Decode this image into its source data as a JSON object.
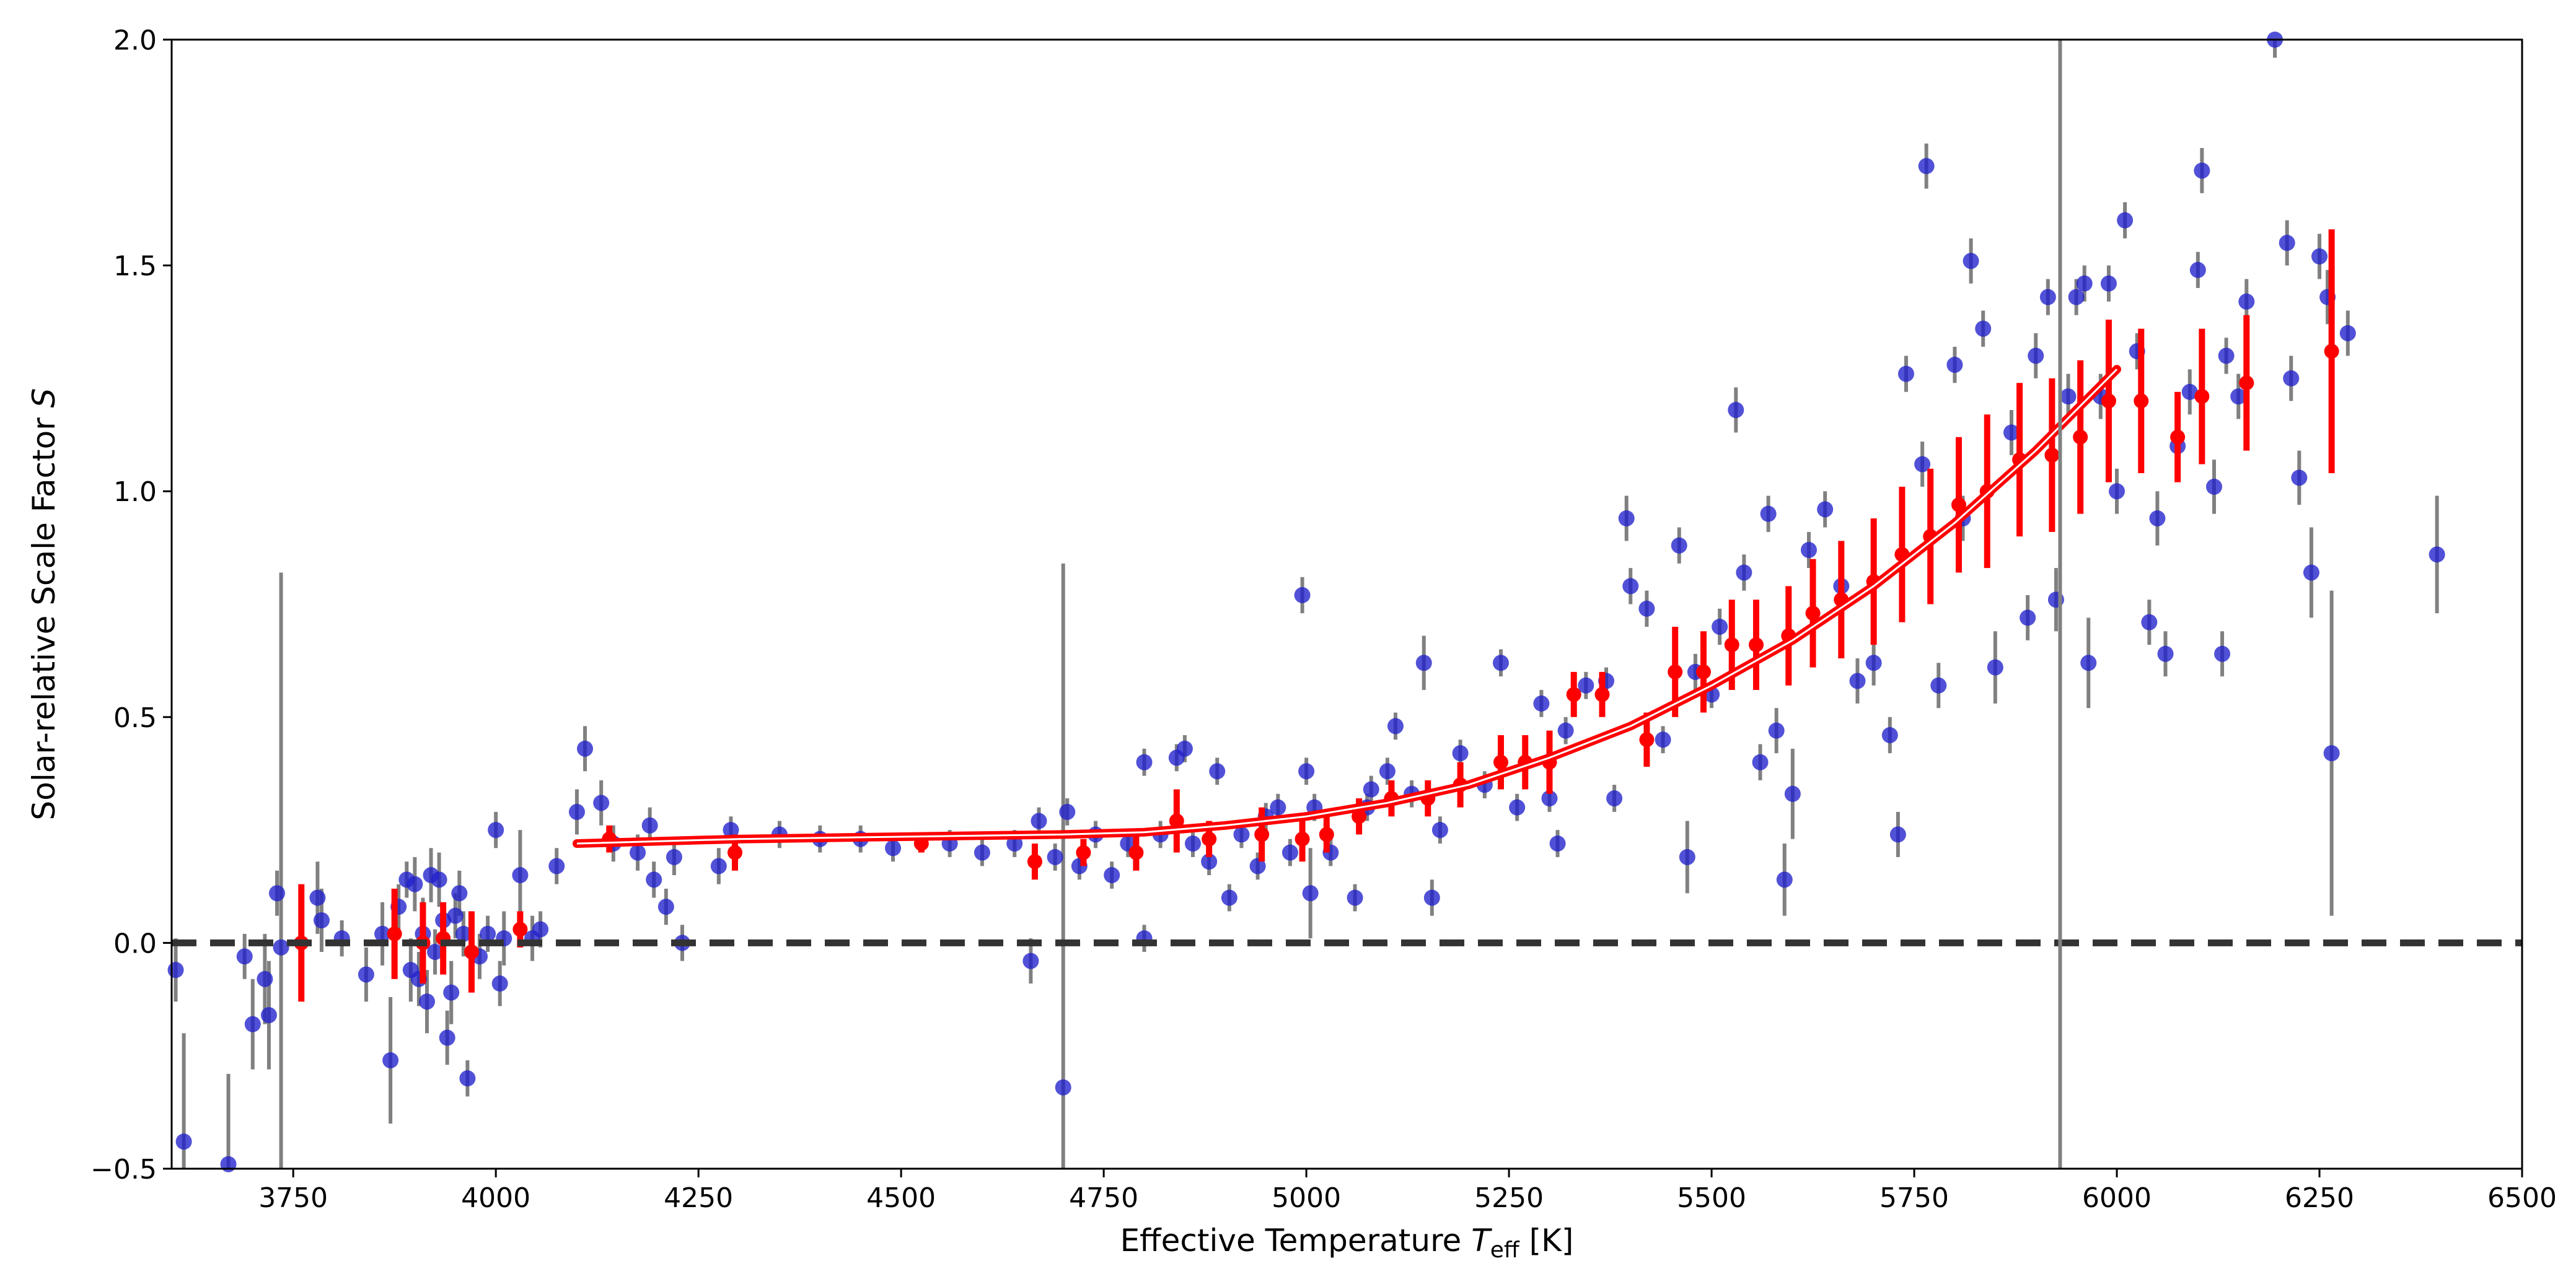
{
  "chart_data": {
    "type": "scatter",
    "title": "",
    "xlabel": {
      "prefix": "Effective Temperature ",
      "symbol": "T",
      "subscript": "eff",
      "suffix": " [K]"
    },
    "ylabel": {
      "prefix": "Solar-relative Scale Factor ",
      "symbol": "S"
    },
    "xlim": [
      3600,
      6500
    ],
    "ylim": [
      -0.5,
      2.0
    ],
    "xticks": [
      3750,
      4000,
      4250,
      4500,
      4750,
      5000,
      5250,
      5500,
      5750,
      6000,
      6250,
      6500
    ],
    "yticks": [
      -0.5,
      0.0,
      0.5,
      1.0,
      1.5,
      2.0
    ],
    "grid": false,
    "reference_line": {
      "y": 0.0,
      "style": "dashed",
      "color": "#333333"
    },
    "vertical_line": {
      "x": 5930,
      "color": "#808080"
    },
    "colors": {
      "individual": "#2020cc",
      "errorbar": "#808080",
      "binned": "#ff0000",
      "fit": "#ff0000"
    },
    "series": [
      {
        "marker": "circle",
        "points": [
          [
            3605,
            -0.06,
            0.07
          ],
          [
            3615,
            -0.44,
            0.24
          ],
          [
            3670,
            -0.49,
            0.2
          ],
          [
            3690,
            -0.03,
            0.05
          ],
          [
            3700,
            -0.18,
            0.1
          ],
          [
            3715,
            -0.08,
            0.1
          ],
          [
            3720,
            -0.16,
            0.12
          ],
          [
            3730,
            0.11,
            0.05
          ],
          [
            3735,
            -0.01,
            0.83
          ],
          [
            3780,
            0.1,
            0.08
          ],
          [
            3785,
            0.05,
            0.07
          ],
          [
            3810,
            0.01,
            0.04
          ],
          [
            3840,
            -0.07,
            0.06
          ],
          [
            3860,
            0.02,
            0.07
          ],
          [
            3870,
            -0.26,
            0.14
          ],
          [
            3880,
            0.08,
            0.05
          ],
          [
            3890,
            0.14,
            0.04
          ],
          [
            3895,
            -0.06,
            0.07
          ],
          [
            3900,
            0.13,
            0.06
          ],
          [
            3905,
            -0.08,
            0.06
          ],
          [
            3910,
            0.02,
            0.08
          ],
          [
            3915,
            -0.13,
            0.07
          ],
          [
            3920,
            0.15,
            0.06
          ],
          [
            3925,
            -0.02,
            0.05
          ],
          [
            3930,
            0.14,
            0.06
          ],
          [
            3935,
            0.05,
            0.04
          ],
          [
            3940,
            -0.21,
            0.06
          ],
          [
            3945,
            -0.11,
            0.07
          ],
          [
            3950,
            0.06,
            0.05
          ],
          [
            3955,
            0.11,
            0.05
          ],
          [
            3960,
            0.02,
            0.05
          ],
          [
            3965,
            -0.3,
            0.04
          ],
          [
            3980,
            -0.03,
            0.05
          ],
          [
            3990,
            0.02,
            0.04
          ],
          [
            4000,
            0.25,
            0.04
          ],
          [
            4005,
            -0.09,
            0.05
          ],
          [
            4010,
            0.01,
            0.06
          ],
          [
            4030,
            0.15,
            0.1
          ],
          [
            4045,
            0.01,
            0.05
          ],
          [
            4055,
            0.03,
            0.04
          ],
          [
            4075,
            0.17,
            0.04
          ],
          [
            4100,
            0.29,
            0.05
          ],
          [
            4110,
            0.43,
            0.05
          ],
          [
            4130,
            0.31,
            0.05
          ],
          [
            4145,
            0.22,
            0.04
          ],
          [
            4175,
            0.2,
            0.04
          ],
          [
            4190,
            0.26,
            0.04
          ],
          [
            4195,
            0.14,
            0.04
          ],
          [
            4210,
            0.08,
            0.04
          ],
          [
            4220,
            0.19,
            0.04
          ],
          [
            4230,
            0.0,
            0.04
          ],
          [
            4275,
            0.17,
            0.04
          ],
          [
            4290,
            0.25,
            0.03
          ],
          [
            4350,
            0.24,
            0.03
          ],
          [
            4400,
            0.23,
            0.03
          ],
          [
            4450,
            0.23,
            0.03
          ],
          [
            4490,
            0.21,
            0.03
          ],
          [
            4560,
            0.22,
            0.03
          ],
          [
            4600,
            0.2,
            0.03
          ],
          [
            4640,
            0.22,
            0.03
          ],
          [
            4660,
            -0.04,
            0.05
          ],
          [
            4670,
            0.27,
            0.03
          ],
          [
            4690,
            0.19,
            0.03
          ],
          [
            4700,
            -0.32,
            1.16
          ],
          [
            4705,
            0.29,
            0.03
          ],
          [
            4720,
            0.17,
            0.03
          ],
          [
            4740,
            0.24,
            0.03
          ],
          [
            4760,
            0.15,
            0.03
          ],
          [
            4780,
            0.22,
            0.03
          ],
          [
            4800,
            0.4,
            0.03
          ],
          [
            4800,
            0.01,
            0.03
          ],
          [
            4820,
            0.24,
            0.03
          ],
          [
            4840,
            0.41,
            0.03
          ],
          [
            4850,
            0.43,
            0.03
          ],
          [
            4860,
            0.22,
            0.03
          ],
          [
            4880,
            0.18,
            0.03
          ],
          [
            4890,
            0.38,
            0.03
          ],
          [
            4905,
            0.1,
            0.03
          ],
          [
            4920,
            0.24,
            0.03
          ],
          [
            4940,
            0.17,
            0.03
          ],
          [
            4950,
            0.28,
            0.03
          ],
          [
            4965,
            0.3,
            0.03
          ],
          [
            4980,
            0.2,
            0.03
          ],
          [
            4995,
            0.77,
            0.04
          ],
          [
            5000,
            0.38,
            0.03
          ],
          [
            5005,
            0.11,
            0.1
          ],
          [
            5010,
            0.3,
            0.03
          ],
          [
            5030,
            0.2,
            0.03
          ],
          [
            5060,
            0.1,
            0.03
          ],
          [
            5075,
            0.3,
            0.03
          ],
          [
            5080,
            0.34,
            0.03
          ],
          [
            5100,
            0.38,
            0.03
          ],
          [
            5110,
            0.48,
            0.03
          ],
          [
            5130,
            0.33,
            0.03
          ],
          [
            5145,
            0.62,
            0.06
          ],
          [
            5155,
            0.1,
            0.04
          ],
          [
            5165,
            0.25,
            0.03
          ],
          [
            5190,
            0.42,
            0.03
          ],
          [
            5220,
            0.35,
            0.03
          ],
          [
            5240,
            0.62,
            0.03
          ],
          [
            5260,
            0.3,
            0.03
          ],
          [
            5290,
            0.53,
            0.03
          ],
          [
            5300,
            0.32,
            0.03
          ],
          [
            5310,
            0.22,
            0.03
          ],
          [
            5320,
            0.47,
            0.03
          ],
          [
            5345,
            0.57,
            0.03
          ],
          [
            5370,
            0.58,
            0.03
          ],
          [
            5380,
            0.32,
            0.03
          ],
          [
            5395,
            0.94,
            0.05
          ],
          [
            5400,
            0.79,
            0.04
          ],
          [
            5420,
            0.74,
            0.04
          ],
          [
            5440,
            0.45,
            0.03
          ],
          [
            5460,
            0.88,
            0.04
          ],
          [
            5470,
            0.19,
            0.08
          ],
          [
            5480,
            0.6,
            0.04
          ],
          [
            5500,
            0.55,
            0.03
          ],
          [
            5510,
            0.7,
            0.04
          ],
          [
            5530,
            1.18,
            0.05
          ],
          [
            5540,
            0.82,
            0.04
          ],
          [
            5560,
            0.4,
            0.04
          ],
          [
            5570,
            0.95,
            0.04
          ],
          [
            5580,
            0.47,
            0.05
          ],
          [
            5590,
            0.14,
            0.08
          ],
          [
            5600,
            0.33,
            0.1
          ],
          [
            5620,
            0.87,
            0.04
          ],
          [
            5640,
            0.96,
            0.04
          ],
          [
            5660,
            0.79,
            0.04
          ],
          [
            5680,
            0.58,
            0.05
          ],
          [
            5700,
            0.62,
            0.05
          ],
          [
            5720,
            0.46,
            0.04
          ],
          [
            5730,
            0.24,
            0.05
          ],
          [
            5740,
            1.26,
            0.04
          ],
          [
            5760,
            1.06,
            0.05
          ],
          [
            5765,
            1.72,
            0.05
          ],
          [
            5780,
            0.57,
            0.05
          ],
          [
            5800,
            1.28,
            0.04
          ],
          [
            5810,
            0.94,
            0.05
          ],
          [
            5820,
            1.51,
            0.05
          ],
          [
            5835,
            1.36,
            0.04
          ],
          [
            5850,
            0.61,
            0.08
          ],
          [
            5870,
            1.13,
            0.05
          ],
          [
            5890,
            0.72,
            0.05
          ],
          [
            5900,
            1.3,
            0.05
          ],
          [
            5915,
            1.43,
            0.04
          ],
          [
            5925,
            0.76,
            0.07
          ],
          [
            5940,
            1.21,
            0.05
          ],
          [
            5950,
            1.43,
            0.04
          ],
          [
            5960,
            1.46,
            0.04
          ],
          [
            5965,
            0.62,
            0.1
          ],
          [
            5980,
            1.21,
            0.05
          ],
          [
            5990,
            1.46,
            0.04
          ],
          [
            6000,
            1.0,
            0.05
          ],
          [
            6010,
            1.6,
            0.04
          ],
          [
            6025,
            1.31,
            0.04
          ],
          [
            6040,
            0.71,
            0.05
          ],
          [
            6050,
            0.94,
            0.06
          ],
          [
            6060,
            0.64,
            0.05
          ],
          [
            6075,
            1.1,
            0.06
          ],
          [
            6090,
            1.22,
            0.05
          ],
          [
            6100,
            1.49,
            0.04
          ],
          [
            6105,
            1.71,
            0.05
          ],
          [
            6120,
            1.01,
            0.06
          ],
          [
            6130,
            0.64,
            0.05
          ],
          [
            6135,
            1.3,
            0.04
          ],
          [
            6150,
            1.21,
            0.05
          ],
          [
            6160,
            1.42,
            0.05
          ],
          [
            6195,
            2.0,
            0.04
          ],
          [
            6210,
            1.55,
            0.05
          ],
          [
            6215,
            1.25,
            0.05
          ],
          [
            6225,
            1.03,
            0.06
          ],
          [
            6240,
            0.82,
            0.1
          ],
          [
            6250,
            1.52,
            0.05
          ],
          [
            6260,
            1.43,
            0.06
          ],
          [
            6265,
            0.42,
            0.36
          ],
          [
            6285,
            1.35,
            0.05
          ],
          [
            6395,
            0.86,
            0.13
          ]
        ]
      },
      {
        "marker": "circle",
        "points": [
          [
            3760,
            0.0,
            0.13
          ],
          [
            3875,
            0.02,
            0.1
          ],
          [
            3910,
            0.0,
            0.09
          ],
          [
            3935,
            0.01,
            0.08
          ],
          [
            3970,
            -0.02,
            0.09
          ],
          [
            4030,
            0.03,
            0.04
          ],
          [
            4140,
            0.23,
            0.03
          ],
          [
            4295,
            0.2,
            0.04
          ],
          [
            4525,
            0.22,
            0.02
          ],
          [
            4665,
            0.18,
            0.04
          ],
          [
            4725,
            0.2,
            0.03
          ],
          [
            4790,
            0.2,
            0.04
          ],
          [
            4840,
            0.27,
            0.07
          ],
          [
            4880,
            0.23,
            0.04
          ],
          [
            4945,
            0.24,
            0.06
          ],
          [
            4995,
            0.23,
            0.05
          ],
          [
            5025,
            0.24,
            0.04
          ],
          [
            5065,
            0.28,
            0.04
          ],
          [
            5105,
            0.32,
            0.04
          ],
          [
            5150,
            0.32,
            0.04
          ],
          [
            5190,
            0.35,
            0.05
          ],
          [
            5240,
            0.4,
            0.06
          ],
          [
            5270,
            0.4,
            0.06
          ],
          [
            5300,
            0.4,
            0.07
          ],
          [
            5330,
            0.55,
            0.05
          ],
          [
            5365,
            0.55,
            0.05
          ],
          [
            5420,
            0.45,
            0.06
          ],
          [
            5455,
            0.6,
            0.1
          ],
          [
            5490,
            0.6,
            0.09
          ],
          [
            5525,
            0.66,
            0.1
          ],
          [
            5555,
            0.66,
            0.1
          ],
          [
            5595,
            0.68,
            0.11
          ],
          [
            5625,
            0.73,
            0.12
          ],
          [
            5660,
            0.76,
            0.13
          ],
          [
            5700,
            0.8,
            0.14
          ],
          [
            5735,
            0.86,
            0.15
          ],
          [
            5770,
            0.9,
            0.15
          ],
          [
            5805,
            0.97,
            0.15
          ],
          [
            5840,
            1.0,
            0.17
          ],
          [
            5880,
            1.07,
            0.17
          ],
          [
            5920,
            1.08,
            0.17
          ],
          [
            5955,
            1.12,
            0.17
          ],
          [
            5990,
            1.2,
            0.18
          ],
          [
            6030,
            1.2,
            0.16
          ],
          [
            6075,
            1.12,
            0.1
          ],
          [
            6105,
            1.21,
            0.15
          ],
          [
            6160,
            1.24,
            0.15
          ],
          [
            6265,
            1.31,
            0.27
          ]
        ]
      }
    ],
    "fit_curve": {
      "x": [
        4100,
        4300,
        4500,
        4700,
        4800,
        4900,
        5000,
        5100,
        5200,
        5300,
        5400,
        5500,
        5600,
        5700,
        5800,
        5900,
        6000
      ],
      "y": [
        0.22,
        0.23,
        0.235,
        0.24,
        0.245,
        0.26,
        0.28,
        0.31,
        0.35,
        0.41,
        0.48,
        0.57,
        0.67,
        0.79,
        0.93,
        1.09,
        1.27
      ]
    }
  }
}
